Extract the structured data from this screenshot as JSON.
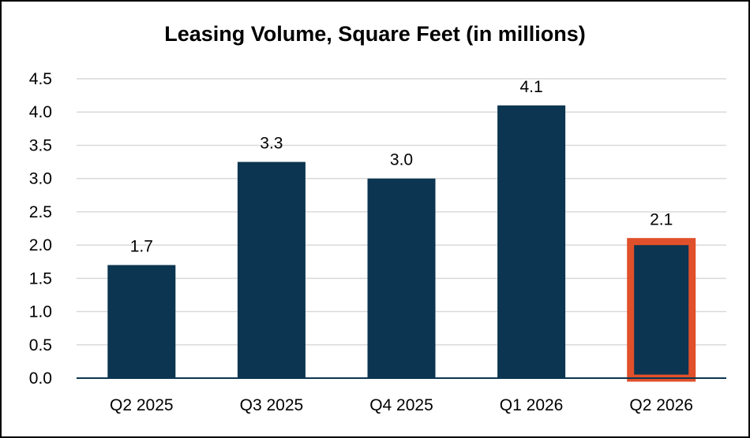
{
  "chart_data": {
    "type": "bar",
    "title": "Leasing Volume, Square Feet (in millions)",
    "categories": [
      "Q2 2025",
      "Q3 2025",
      "Q4 2025",
      "Q1 2026",
      "Q2 2026"
    ],
    "values": [
      1.7,
      3.25,
      3.0,
      4.1,
      2.1
    ],
    "data_labels": [
      "1.7",
      "3.3",
      "3.0",
      "4.1",
      "2.1"
    ],
    "ylim": [
      0,
      4.5
    ],
    "yticks": [
      "0.0",
      "0.5",
      "1.0",
      "1.5",
      "2.0",
      "2.5",
      "3.0",
      "3.5",
      "4.0",
      "4.5"
    ],
    "xlabel": "",
    "ylabel": "",
    "grid": true,
    "highlight_index": 4,
    "colors": {
      "bar": "#0b3550",
      "highlight_outline": "#e0502a",
      "grid": "#d9d9d9",
      "axis": "#0b3550"
    }
  }
}
